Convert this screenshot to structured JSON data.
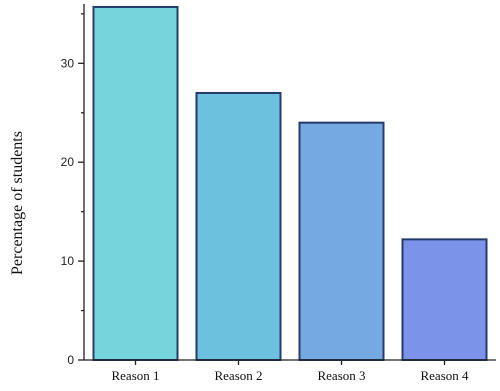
{
  "chart_data": {
    "type": "bar",
    "title": "",
    "xlabel": "",
    "ylabel": "Percentage of students",
    "categories": [
      "Reason 1",
      "Reason 2",
      "Reason 3",
      "Reason 4"
    ],
    "values": [
      35.7,
      27.0,
      24.0,
      12.2
    ],
    "bar_colors": [
      "#76d4dc",
      "#6cc2de",
      "#74a9e2",
      "#7b93e9"
    ],
    "ylim": [
      0,
      36
    ],
    "yticks": [
      0,
      10,
      20,
      30
    ],
    "grid": false,
    "legend": "none"
  }
}
